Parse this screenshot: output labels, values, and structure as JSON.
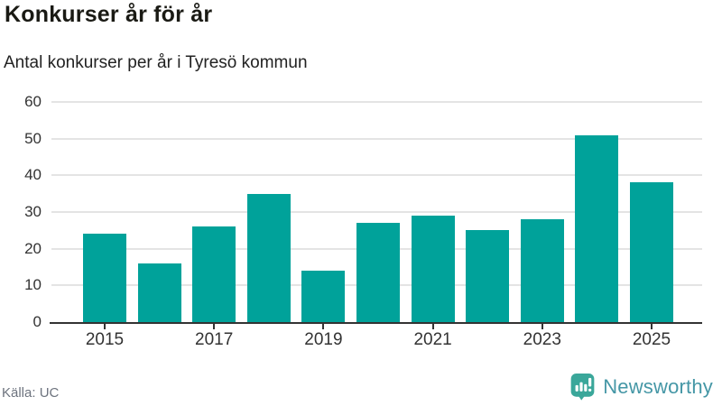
{
  "header": {
    "title": "Konkurser år för år",
    "subtitle": "Antal konkurser per år i Tyresö kommun"
  },
  "chart_data": {
    "type": "bar",
    "categories": [
      "2015",
      "2016",
      "2017",
      "2018",
      "2019",
      "2020",
      "2021",
      "2022",
      "2023",
      "2024",
      "2025"
    ],
    "values": [
      24,
      16,
      26,
      35,
      14,
      27,
      29,
      25,
      28,
      51,
      38
    ],
    "title": "Konkurser år för år",
    "subtitle": "Antal konkurser per år i Tyresö kommun",
    "xlabel": "",
    "ylabel": "",
    "ylim": [
      0,
      60
    ],
    "y_ticks": [
      0,
      10,
      20,
      30,
      40,
      50,
      60
    ],
    "x_tick_labels": [
      "2015",
      "2017",
      "2019",
      "2021",
      "2023",
      "2025"
    ],
    "grid": true,
    "legend": false,
    "bar_color": "#00a29a"
  },
  "footer": {
    "source": "Källa: UC",
    "brand": "Newsworthy"
  },
  "colors": {
    "bar": "#00a29a",
    "grid": "#e4e4e4",
    "axis_text": "#333333",
    "title_text": "#1a1a14",
    "source_text": "#6d737e",
    "logo_teal": "#3aa79a",
    "logo_text": "#4597a6"
  }
}
